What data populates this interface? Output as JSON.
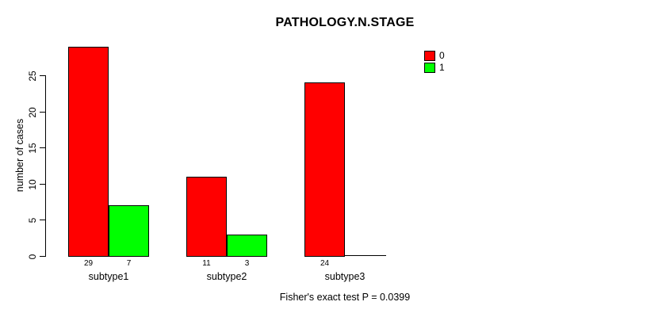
{
  "chart_data": {
    "type": "bar",
    "title": "PATHOLOGY.N.STAGE",
    "xlabel": "",
    "ylabel": "number of cases",
    "categories": [
      "subtype1",
      "subtype2",
      "subtype3"
    ],
    "series": [
      {
        "name": "0",
        "color": "#FF0000",
        "values": [
          29,
          11,
          24
        ]
      },
      {
        "name": "1",
        "color": "#00FF00",
        "values": [
          7,
          3,
          0
        ]
      }
    ],
    "bar_value_labels": [
      [
        "29",
        "7"
      ],
      [
        "11",
        "3"
      ],
      [
        "24",
        ""
      ]
    ],
    "yticks": [
      0,
      5,
      10,
      15,
      20,
      25
    ],
    "ylim": [
      0,
      25
    ],
    "grid": false,
    "legend_position": "top-right",
    "annotation": "Fisher's exact test P = 0.0399"
  },
  "colors": {
    "background": "#FFFFFF",
    "axis": "#000000",
    "bar_outline": "#000000",
    "series0": "#FF0000",
    "series1": "#00FF00"
  }
}
